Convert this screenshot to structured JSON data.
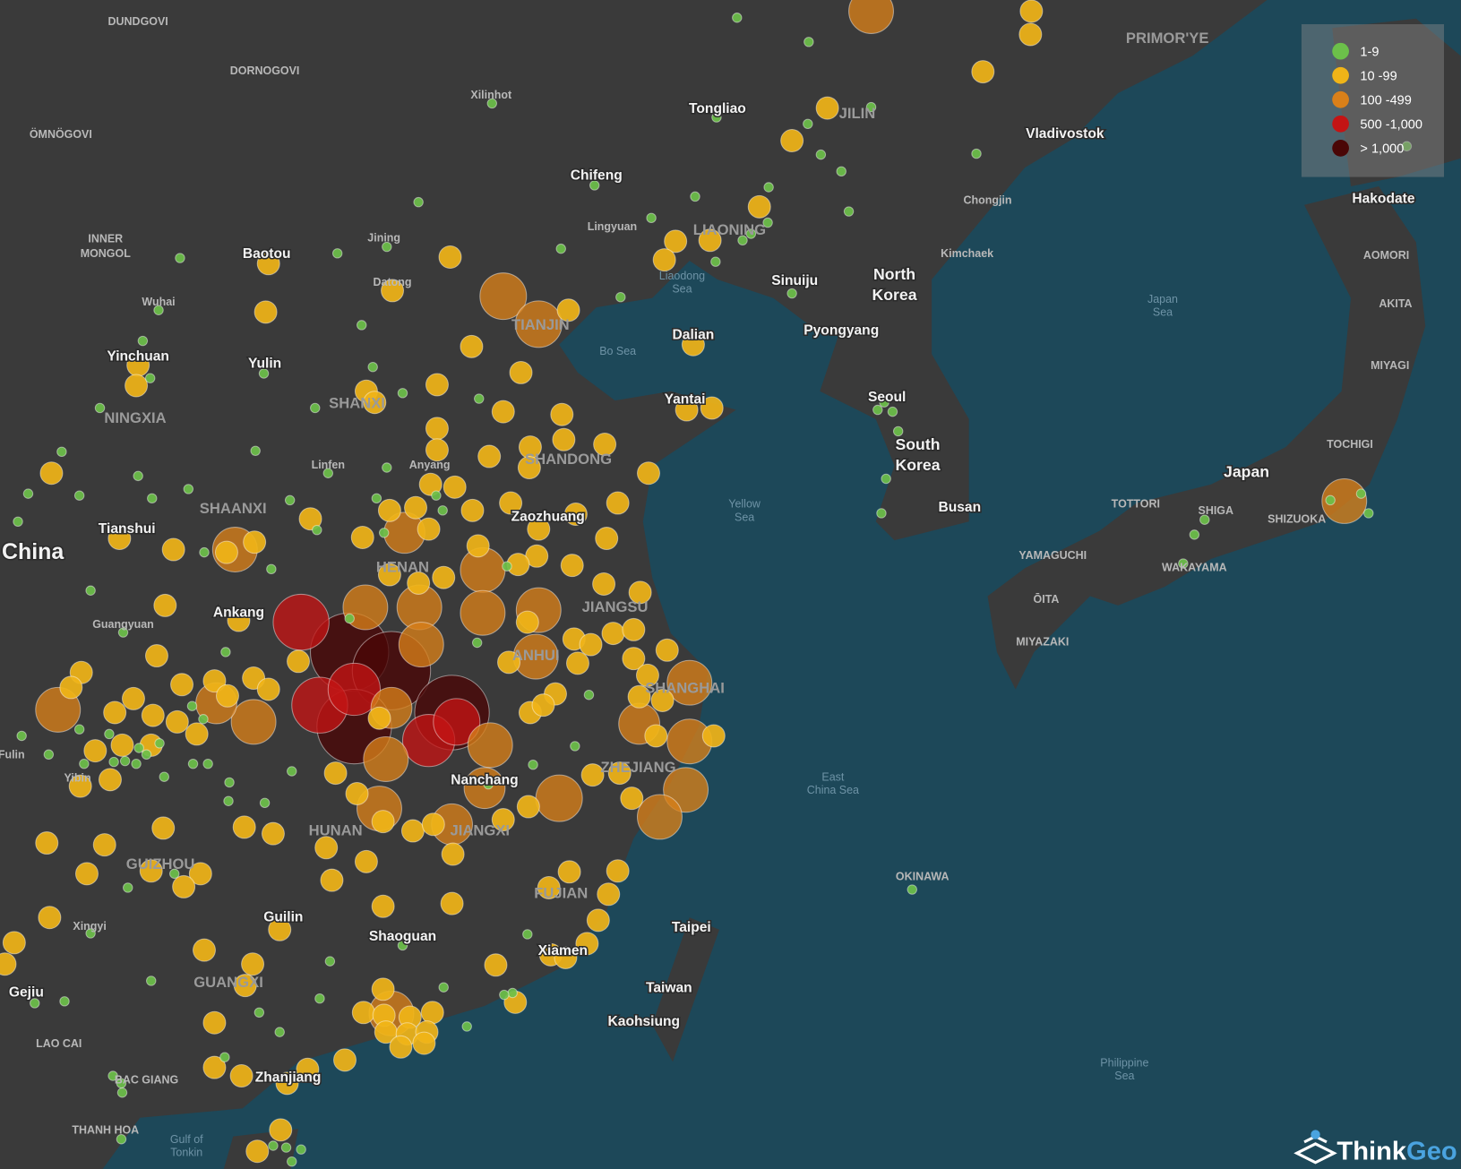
{
  "legend": {
    "items": [
      {
        "label": "1-9",
        "color": "#6cc04a"
      },
      {
        "label": "10 -99",
        "color": "#f0b418"
      },
      {
        "label": "100 -499",
        "color": "#d9801a"
      },
      {
        "label": "500 -1,000",
        "color": "#c41414"
      },
      {
        "label": "> 1,000",
        "color": "#4a0606"
      }
    ]
  },
  "labels": [
    {
      "lines": [
        "China"
      ]
    },
    {
      "lines": [
        "North",
        "Korea"
      ]
    },
    {
      "lines": [
        "South",
        "Korea"
      ]
    },
    {
      "lines": [
        "Japan"
      ]
    },
    {
      "lines": [
        "Taiwan"
      ]
    },
    {
      "lines": [
        "Xilinhot"
      ]
    },
    {
      "lines": [
        "Tongliao"
      ]
    },
    {
      "lines": [
        "Chifeng"
      ]
    },
    {
      "lines": [
        "Vladivostok"
      ]
    },
    {
      "lines": [
        "Hakodate"
      ]
    },
    {
      "lines": [
        "Baotou"
      ]
    },
    {
      "lines": [
        "Jining"
      ]
    },
    {
      "lines": [
        "Datong"
      ]
    },
    {
      "lines": [
        "Wuhai"
      ]
    },
    {
      "lines": [
        "Yinchuan"
      ]
    },
    {
      "lines": [
        "Yulin"
      ]
    },
    {
      "lines": [
        "Sinuiju"
      ]
    },
    {
      "lines": [
        "Pyongyang"
      ]
    },
    {
      "lines": [
        "Dalian"
      ]
    },
    {
      "lines": [
        "Yantai"
      ]
    },
    {
      "lines": [
        "Seoul"
      ]
    },
    {
      "lines": [
        "Busan"
      ]
    },
    {
      "lines": [
        "Tianshui"
      ]
    },
    {
      "lines": [
        "Linfen"
      ]
    },
    {
      "lines": [
        "Anyang"
      ]
    },
    {
      "lines": [
        "Zaozhuang"
      ]
    },
    {
      "lines": [
        "Ankang"
      ]
    },
    {
      "lines": [
        "Guangyuan"
      ]
    },
    {
      "lines": [
        "Nanchang"
      ]
    },
    {
      "lines": [
        "Guilin"
      ]
    },
    {
      "lines": [
        "Shaoguan"
      ]
    },
    {
      "lines": [
        "Xiamen"
      ]
    },
    {
      "lines": [
        "Taipei"
      ]
    },
    {
      "lines": [
        "Kaohsiung"
      ]
    },
    {
      "lines": [
        "Zhanjiang"
      ]
    },
    {
      "lines": [
        "Gejiu"
      ]
    },
    {
      "lines": [
        "Xingyi"
      ]
    },
    {
      "lines": [
        "Yibin"
      ]
    },
    {
      "lines": [
        "Fulin"
      ]
    },
    {
      "lines": [
        "Chongjin"
      ]
    },
    {
      "lines": [
        "Kimchaek"
      ]
    },
    {
      "lines": [
        "Lingyuan"
      ]
    },
    {
      "lines": [
        "DUNDGOVI"
      ]
    },
    {
      "lines": [
        "DORNOGOVI"
      ]
    },
    {
      "lines": [
        "ÖMNÖGOVI"
      ]
    },
    {
      "lines": [
        "INNER",
        "MONGOL"
      ]
    },
    {
      "lines": [
        "NINGXIA"
      ]
    },
    {
      "lines": [
        "SHAANXI"
      ]
    },
    {
      "lines": [
        "SHANXI"
      ]
    },
    {
      "lines": [
        "SHANDONG"
      ]
    },
    {
      "lines": [
        "HENAN"
      ]
    },
    {
      "lines": [
        "JIANGSU"
      ]
    },
    {
      "lines": [
        "ANHUI"
      ]
    },
    {
      "lines": [
        "SHANGHAI"
      ]
    },
    {
      "lines": [
        "ZHEJIANG"
      ]
    },
    {
      "lines": [
        "JIANGXI"
      ]
    },
    {
      "lines": [
        "HUNAN"
      ]
    },
    {
      "lines": [
        "GUIZHOU"
      ]
    },
    {
      "lines": [
        "FUJIAN"
      ]
    },
    {
      "lines": [
        "GUANGXI"
      ]
    },
    {
      "lines": [
        "LIAONING"
      ]
    },
    {
      "lines": [
        "JILIN"
      ]
    },
    {
      "lines": [
        "PRIMOR'YE"
      ]
    },
    {
      "lines": [
        "TIANJIN"
      ]
    },
    {
      "lines": [
        "AOMORI"
      ]
    },
    {
      "lines": [
        "AKITA"
      ]
    },
    {
      "lines": [
        "MIYAGI"
      ]
    },
    {
      "lines": [
        "TOCHIGI"
      ]
    },
    {
      "lines": [
        "TOTTORI"
      ]
    },
    {
      "lines": [
        "SHIGA"
      ]
    },
    {
      "lines": [
        "SHIZUOKA"
      ]
    },
    {
      "lines": [
        "YAMAGUCHI"
      ]
    },
    {
      "lines": [
        "WAKAYAMA"
      ]
    },
    {
      "lines": [
        "ŌITA"
      ]
    },
    {
      "lines": [
        "MIYAZAKI"
      ]
    },
    {
      "lines": [
        "OKINAWA"
      ]
    },
    {
      "lines": [
        "LAO CAI"
      ]
    },
    {
      "lines": [
        "BAC GIANG"
      ]
    },
    {
      "lines": [
        "THANH HOA"
      ]
    },
    {
      "lines": [
        "Bo Sea"
      ]
    },
    {
      "lines": [
        "Liaodong",
        "Sea"
      ]
    },
    {
      "lines": [
        "Yellow",
        "Sea"
      ]
    },
    {
      "lines": [
        "East",
        "China Sea"
      ]
    },
    {
      "lines": [
        "Japan",
        "Sea"
      ]
    },
    {
      "lines": [
        "Philippine",
        "Sea"
      ]
    },
    {
      "lines": [
        "Gulf of",
        "Tonkin"
      ]
    }
  ],
  "logo": [
    "Think",
    "Geo"
  ]
}
